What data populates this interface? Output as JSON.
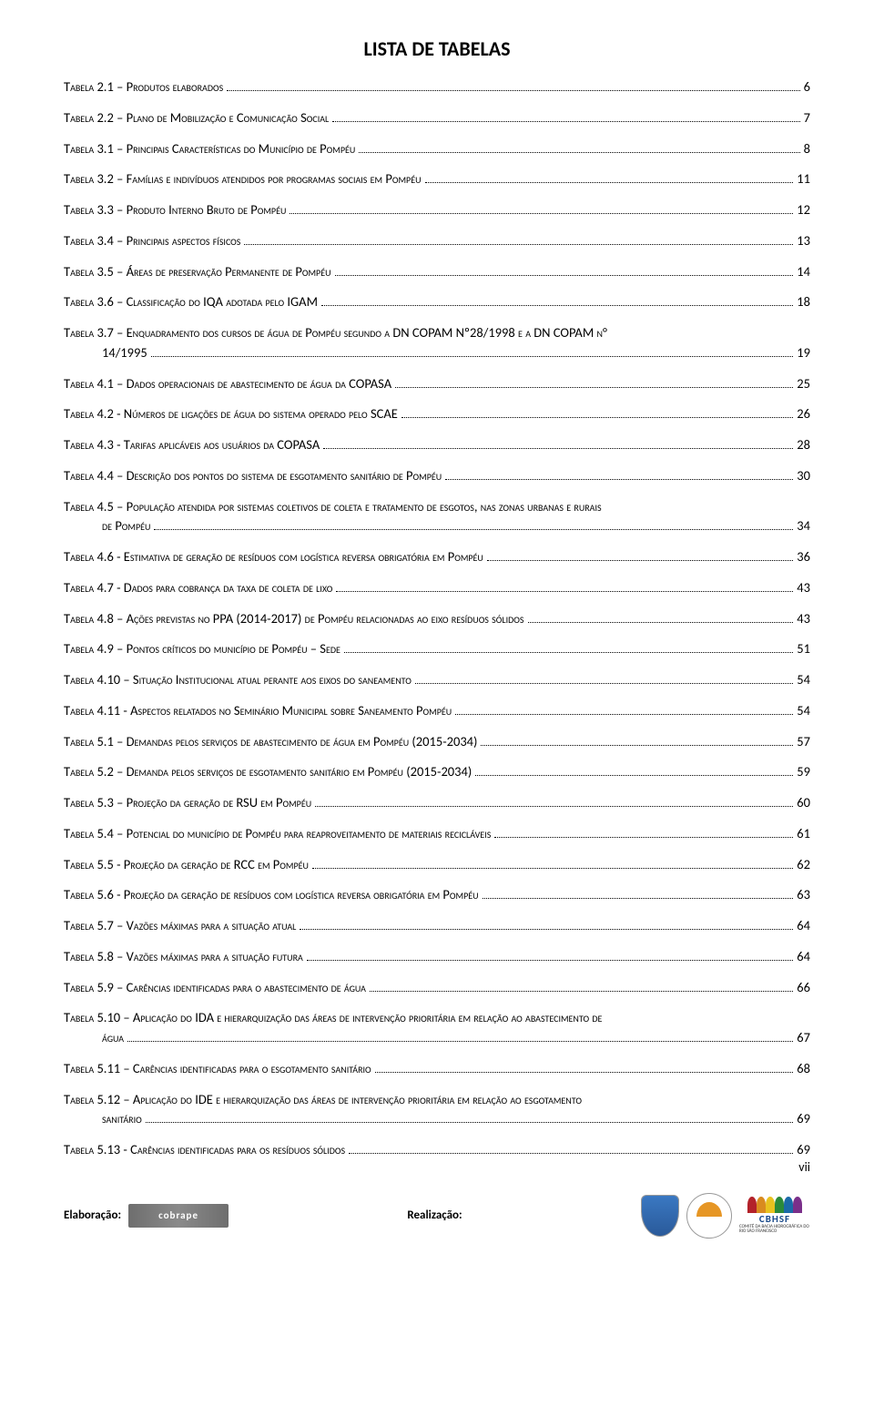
{
  "title": "LISTA DE TABELAS",
  "entries": [
    {
      "label": "Tabela 2.1 – Produtos elaborados",
      "page": "6"
    },
    {
      "label": "Tabela 2.2 – Plano de Mobilização e Comunicação Social",
      "page": "7"
    },
    {
      "label": "Tabela 3.1 – Principais Características do Município de Pompéu",
      "page": "8"
    },
    {
      "label": "Tabela 3.2 – Famílias e indivíduos atendidos por programas sociais em Pompéu",
      "page": "11"
    },
    {
      "label": "Tabela 3.3 – Produto Interno Bruto de Pompéu",
      "page": "12"
    },
    {
      "label": "Tabela 3.4 – Principais aspectos físicos",
      "page": "13"
    },
    {
      "label": "Tabela 3.5 – Áreas de preservação Permanente de Pompéu",
      "page": "14"
    },
    {
      "label": "Tabela 3.6 – Classificação do IQA adotada pelo IGAM",
      "page": "18"
    },
    {
      "multiline": true,
      "line1": "Tabela 3.7 – Enquadramento dos cursos de água de Pompéu segundo a DN COPAM Nº28/1998 e a DN COPAM n°",
      "line2": "14/1995",
      "page": "19"
    },
    {
      "label": "Tabela 4.1 – Dados operacionais de abastecimento de água da COPASA",
      "page": "25"
    },
    {
      "label": "Tabela 4.2 - Números de ligações de água do sistema operado pelo SCAE",
      "page": "26"
    },
    {
      "label": "Tabela 4.3 - Tarifas aplicáveis aos usuários da COPASA",
      "page": "28"
    },
    {
      "label": "Tabela 4.4 – Descrição dos pontos do sistema de esgotamento sanitário de Pompéu",
      "page": "30"
    },
    {
      "multiline": true,
      "line1": "Tabela 4.5 – População atendida por sistemas coletivos de coleta e tratamento de esgotos, nas zonas urbanas e rurais",
      "line2": "de Pompéu",
      "page": "34"
    },
    {
      "label": "Tabela 4.6 - Estimativa de geração de resíduos com logística reversa obrigatória em Pompéu",
      "page": "36"
    },
    {
      "label": "Tabela 4.7 - Dados para cobrança da taxa de coleta de lixo",
      "page": "43"
    },
    {
      "label": "Tabela 4.8 – Ações previstas no PPA (2014-2017) de Pompéu relacionadas ao eixo resíduos sólidos",
      "page": "43"
    },
    {
      "label": "Tabela 4.9 – Pontos críticos do município de Pompéu – Sede",
      "page": "51"
    },
    {
      "label": "Tabela 4.10 – Situação Institucional atual perante aos eixos do saneamento",
      "page": "54"
    },
    {
      "label": "Tabela 4.11 - Aspectos relatados no Seminário Municipal sobre Saneamento Pompéu",
      "page": "54"
    },
    {
      "label": "Tabela 5.1 – Demandas pelos serviços de abastecimento de água em Pompéu (2015-2034)",
      "page": "57"
    },
    {
      "label": "Tabela 5.2 – Demanda pelos serviços de esgotamento sanitário em Pompéu (2015-2034)",
      "page": "59"
    },
    {
      "label": "Tabela 5.3 – Projeção da geração de RSU em Pompéu",
      "page": "60"
    },
    {
      "label": "Tabela 5.4 – Potencial do município de Pompéu para reaproveitamento de materiais recicláveis",
      "page": "61"
    },
    {
      "label": "Tabela 5.5 - Projeção da geração de RCC em Pompéu",
      "page": "62"
    },
    {
      "label": "Tabela 5.6 - Projeção da geração de resíduos com logística reversa obrigatória em Pompéu",
      "page": "63"
    },
    {
      "label": "Tabela 5.7 – Vazões máximas para a situação atual",
      "page": "64"
    },
    {
      "label": "Tabela 5.8 – Vazões máximas para a situação futura",
      "page": "64"
    },
    {
      "label": "Tabela 5.9 – Carências identificadas para o abastecimento de água",
      "page": "66"
    },
    {
      "multiline": true,
      "line1": "Tabela 5.10 – Aplicação do IDA e hierarquização das áreas de intervenção prioritária em relação ao abastecimento de",
      "line2": "água",
      "page": "67"
    },
    {
      "label": "Tabela 5.11 – Carências identificadas para o esgotamento sanitário",
      "page": "68"
    },
    {
      "multiline": true,
      "line1": "Tabela 5.12 – Aplicação do IDE e hierarquização das áreas de intervenção prioritária em relação ao esgotamento",
      "line2": "sanitário",
      "page": "69"
    },
    {
      "label": "Tabela 5.13 - Carências identificadas para os resíduos sólidos",
      "page": "69"
    }
  ],
  "footer": {
    "elab": "Elaboração:",
    "realiz": "Realização:",
    "cobrape": "cobrape",
    "cbhsf": "CBHSF",
    "cbhsf_sub": "COMITÊ DA BACIA HIDROGRÁFICA DO RIO SÃO FRANCISCO"
  },
  "pageNumber": "vii",
  "colors": {
    "wave": [
      "#b3222a",
      "#d98b1f",
      "#e8c21f",
      "#2a8a3a",
      "#1a6aa8",
      "#7a2f8a"
    ]
  }
}
